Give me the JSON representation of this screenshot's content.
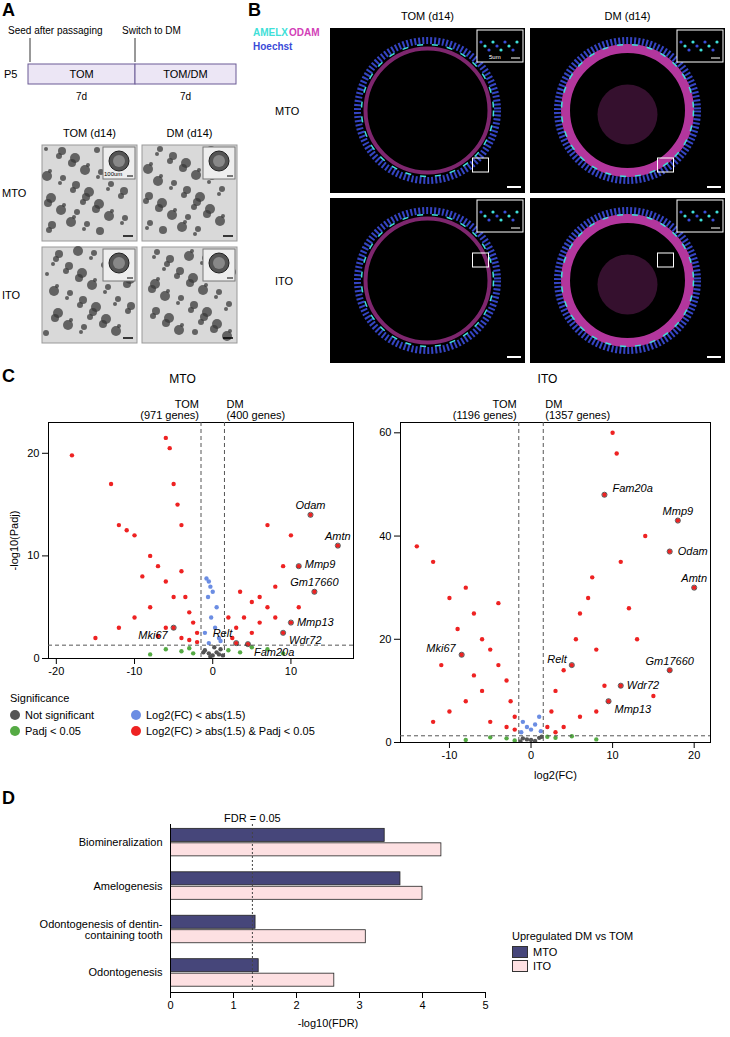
{
  "panel_a": {
    "label": "A",
    "timeline": {
      "start_note": "Seed after passaging",
      "switch_note": "Switch to DM",
      "passage": "P5",
      "stages": [
        {
          "medium": "TOM",
          "duration": "7d"
        },
        {
          "medium": "TOM/DM",
          "duration": "7d"
        }
      ]
    },
    "image_grid": {
      "columns": [
        "TOM (d14)",
        "DM (d14)"
      ],
      "rows": [
        "MTO",
        "ITO"
      ],
      "scale_bar": "100um"
    }
  },
  "panel_b": {
    "label": "B",
    "stains": [
      {
        "name": "AMELX",
        "color": "#3fe0d8"
      },
      {
        "name": "ODAM",
        "color": "#d23fb8"
      },
      {
        "name": "Hoechst",
        "color": "#3a4bd8"
      }
    ],
    "columns": [
      "TOM (d14)",
      "DM (d14)"
    ],
    "rows": [
      "MTO",
      "ITO"
    ],
    "inset_scale_bar": "5um"
  },
  "panel_c_label": "C",
  "panel_d_label": "D",
  "chart_data": [
    {
      "type": "scatter",
      "title": "MTO",
      "y_label": "-log10(Padj)",
      "xlim": [
        -21,
        18
      ],
      "xticks": [
        -20,
        -10,
        0,
        10
      ],
      "ylim": [
        0,
        23
      ],
      "yticks": [
        0,
        10,
        20
      ],
      "fc_thresholds": [
        -1.5,
        1.5
      ],
      "padj_threshold_line": 1.3,
      "group_labels": [
        [
          "TOM",
          "(971 genes)"
        ],
        [
          "DM",
          "(400 genes)"
        ]
      ],
      "legend": "bottom",
      "legend_title": "Significance",
      "series": [
        {
          "name": "Not significant",
          "color": "#555555",
          "x": [
            -1,
            -0.5,
            0,
            0.5,
            1,
            0.2,
            -0.3,
            0.8,
            -1.2,
            1.3
          ],
          "y": [
            0.8,
            0.5,
            0.3,
            0.6,
            0.9,
            1.1,
            0.2,
            0.4,
            0.6,
            0.3
          ]
        },
        {
          "name": "Log2(FC) < abs(1.5)",
          "color": "#6b8de3",
          "x": [
            -0.8,
            -0.5,
            -0.3,
            0,
            -0.6,
            0.5,
            -0.2,
            0.3,
            -1,
            0.8,
            1,
            -0.5
          ],
          "y": [
            7.8,
            7.5,
            7,
            6.5,
            6,
            5,
            4,
            3,
            2.5,
            2,
            1.7,
            1.5
          ]
        },
        {
          "name": "Padj < 0.05",
          "color": "#55aa44",
          "x": [
            -6,
            -4,
            -3,
            -2.5,
            2,
            3.5,
            5,
            7,
            -8,
            9
          ],
          "y": [
            0.9,
            0.7,
            1,
            0.5,
            0.8,
            0.6,
            1.1,
            0.9,
            0.4,
            0.5
          ]
        },
        {
          "name": "Log2(FC) > abs(1.5) & Padj < 0.05",
          "color": "#ee2222",
          "x": [
            -18,
            -13,
            -12,
            -11,
            -10,
            -8,
            -6,
            -5.5,
            -5,
            -4.5,
            -4,
            -7,
            -9,
            -6,
            -5,
            -4,
            -3.5,
            -3,
            -2.5,
            -2,
            -8,
            -10,
            -12,
            -6,
            -4,
            -3,
            -7,
            -15,
            -2,
            -5,
            3,
            4,
            5,
            6,
            7,
            8,
            9,
            10,
            7,
            12.5,
            16,
            11,
            13,
            10,
            9,
            3,
            4.5,
            2.5,
            5,
            6,
            8,
            11,
            3.5,
            2
          ],
          "y": [
            19.8,
            17,
            13,
            12.5,
            12,
            10,
            21.5,
            20.5,
            17,
            15,
            13,
            9,
            8,
            7.5,
            6,
            8.5,
            6,
            4.5,
            3.5,
            2.5,
            5,
            4,
            3,
            3,
            2,
            1.8,
            2.2,
            2,
            1.6,
            3,
            3,
            4,
            5.5,
            6,
            5,
            7,
            9,
            12,
            13,
            14,
            11,
            9,
            6.5,
            3.5,
            2.5,
            1.5,
            1.4,
            2,
            2.5,
            3.5,
            4,
            5,
            6.5,
            4
          ]
        }
      ],
      "labeled_points": [
        {
          "label": "Odam",
          "x": 12.5,
          "y": 14
        },
        {
          "label": "Amtn",
          "x": 16,
          "y": 11
        },
        {
          "label": "Mmp9",
          "x": 11,
          "y": 9
        },
        {
          "label": "Gm17660",
          "x": 13,
          "y": 6.5
        },
        {
          "label": "Mmp13",
          "x": 10,
          "y": 3.5
        },
        {
          "label": "Wdr72",
          "x": 9,
          "y": 2.5
        },
        {
          "label": "Relt",
          "x": 3,
          "y": 1.5
        },
        {
          "label": "Fam20a",
          "x": 4.5,
          "y": 1.4
        },
        {
          "label": "Mki67",
          "x": -5,
          "y": 3
        }
      ]
    },
    {
      "type": "scatter",
      "title": "ITO",
      "x_label": "log2(FC)",
      "xlim": [
        -16,
        22
      ],
      "xticks": [
        -10,
        0,
        10,
        20
      ],
      "ylim": [
        0,
        62
      ],
      "yticks": [
        0,
        20,
        40,
        60
      ],
      "fc_thresholds": [
        -1.5,
        1.5
      ],
      "padj_threshold_line": 1.3,
      "group_labels": [
        [
          "TOM",
          "(1196 genes)"
        ],
        [
          "DM",
          "(1357 genes)"
        ]
      ],
      "series": [
        {
          "name": "Not significant",
          "color": "#555555",
          "x": [
            -1,
            0,
            1,
            0.5,
            -0.5,
            1.3,
            -1.3
          ],
          "y": [
            0.8,
            0.5,
            0.9,
            0.3,
            0.6,
            1.1,
            0.2
          ]
        },
        {
          "name": "Log2(FC) < abs(1.5)",
          "color": "#6b8de3",
          "x": [
            -1,
            -0.5,
            0.5,
            1,
            0,
            -1.2,
            1.2
          ],
          "y": [
            4,
            3,
            3.5,
            5,
            2.5,
            2,
            2.2
          ]
        },
        {
          "name": "Padj < 0.05",
          "color": "#55aa44",
          "x": [
            -5,
            -3,
            -8,
            3,
            5,
            8,
            -2,
            2
          ],
          "y": [
            1,
            0.8,
            0.5,
            0.9,
            1.2,
            0.6,
            0.4,
            1.1
          ]
        },
        {
          "name": "Log2(FC) > abs(1.5) & Padj < 0.05",
          "color": "#ee2222",
          "x": [
            -14,
            -12,
            -10,
            -9,
            -8.5,
            -8,
            -7,
            -6,
            -5,
            -4,
            -3,
            -2.5,
            -2,
            -6,
            -8,
            -10,
            -12,
            -5,
            -3,
            -7,
            -4,
            -11,
            -2,
            2,
            2.5,
            3,
            4,
            5,
            5.5,
            6,
            7,
            7.5,
            8,
            9,
            10,
            10.5,
            11,
            12,
            9,
            11,
            9.5,
            13,
            14,
            17,
            18,
            20,
            17,
            15,
            6,
            4,
            8,
            3
          ],
          "y": [
            38,
            35,
            28,
            22,
            17,
            30,
            25,
            20,
            18,
            15,
            12,
            8,
            5,
            10,
            8,
            6,
            4,
            4,
            3,
            13,
            27,
            15,
            2.5,
            3,
            6,
            10,
            14,
            15,
            20,
            25,
            28,
            32,
            18,
            48,
            60,
            56,
            35,
            26,
            11,
            11,
            8,
            20,
            40,
            37,
            43,
            30,
            14,
            9,
            5,
            3,
            6,
            2
          ]
        }
      ],
      "labeled_points": [
        {
          "label": "Fam20a",
          "x": 9,
          "y": 48
        },
        {
          "label": "Mmp9",
          "x": 18,
          "y": 43
        },
        {
          "label": "Odam",
          "x": 17,
          "y": 37
        },
        {
          "label": "Amtn",
          "x": 20,
          "y": 30
        },
        {
          "label": "Relt",
          "x": 5,
          "y": 15
        },
        {
          "label": "Gm17660",
          "x": 17,
          "y": 14
        },
        {
          "label": "Wdr72",
          "x": 11,
          "y": 11
        },
        {
          "label": "Mmp13",
          "x": 9.5,
          "y": 8
        },
        {
          "label": "Mki67",
          "x": -8.5,
          "y": 17
        }
      ]
    },
    {
      "type": "bar",
      "orientation": "horizontal",
      "categories": [
        "Biomineralization",
        "Amelogenesis",
        "Odontogenesis of dentin-containing tooth",
        "Odontogenesis"
      ],
      "series": [
        {
          "name": "MTO",
          "color": "#46467a",
          "values": [
            3.4,
            3.65,
            1.35,
            1.4
          ]
        },
        {
          "name": "ITO",
          "color": "#fde0e2",
          "values": [
            4.3,
            4.0,
            3.1,
            2.6
          ]
        }
      ],
      "x_label": "-log10(FDR)",
      "xlim": [
        0,
        5
      ],
      "xticks": [
        0,
        1,
        2,
        3,
        4,
        5
      ],
      "fdr_line": {
        "value": 1.3,
        "label": "FDR = 0.05"
      },
      "legend": "bottom-right",
      "legend_title": "Upregulated DM vs TOM"
    }
  ]
}
